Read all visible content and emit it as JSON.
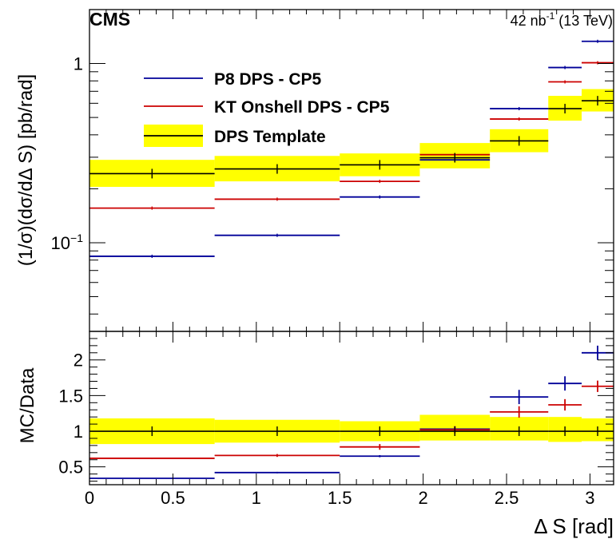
{
  "header": {
    "experiment": "CMS",
    "lumi_main": "42 nb",
    "lumi_exp": "-1",
    "lumi_energy": " (13 TeV)"
  },
  "chart_data": [
    {
      "type": "line",
      "panel": "main",
      "ylabel": "(1/σ)(dσ/dΔ S) [pb/rad]",
      "yscale": "log",
      "ylim": [
        0.032,
        2.0
      ],
      "xlim": [
        0,
        3.1416
      ],
      "y_ticks": [
        {
          "value": 1,
          "label": "1"
        },
        {
          "value": 0.1,
          "label": "10",
          "exp": "−1"
        }
      ],
      "bin_edges": [
        0,
        0.75,
        1.5,
        1.98,
        2.4,
        2.75,
        2.95,
        3.1416
      ],
      "legend_position": "top-left",
      "series": [
        {
          "name": "P8 DPS - CP5",
          "color": "#000099",
          "style": "step",
          "values": [
            0.084,
            0.11,
            0.18,
            0.29,
            0.56,
            0.95,
            1.33
          ]
        },
        {
          "name": "KT Onshell DPS - CP5",
          "color": "#cc0000",
          "style": "step",
          "values": [
            0.156,
            0.175,
            0.22,
            0.31,
            0.49,
            0.79,
            1.01
          ]
        },
        {
          "name": "DPS Template",
          "color": "#000000",
          "band_color": "#ffff00",
          "style": "band",
          "values": [
            0.243,
            0.258,
            0.272,
            0.298,
            0.37,
            0.56,
            0.62
          ],
          "band_lo": [
            0.205,
            0.22,
            0.235,
            0.26,
            0.32,
            0.48,
            0.54
          ],
          "band_hi": [
            0.29,
            0.305,
            0.315,
            0.36,
            0.43,
            0.66,
            0.72
          ]
        }
      ]
    },
    {
      "type": "line",
      "panel": "ratio",
      "xlabel": "Δ S [rad]",
      "ylabel": "MC/Data",
      "ylim": [
        0.25,
        2.4
      ],
      "xlim": [
        0,
        3.1416
      ],
      "y_ticks": [
        {
          "value": 0.5,
          "label": "0.5"
        },
        {
          "value": 1,
          "label": "1"
        },
        {
          "value": 1.5,
          "label": "1.5"
        },
        {
          "value": 2,
          "label": "2"
        }
      ],
      "x_ticks": [
        {
          "value": 0,
          "label": "0"
        },
        {
          "value": 0.5,
          "label": "0.5"
        },
        {
          "value": 1,
          "label": "1"
        },
        {
          "value": 1.5,
          "label": "1.5"
        },
        {
          "value": 2,
          "label": "2"
        },
        {
          "value": 2.5,
          "label": "2.5"
        },
        {
          "value": 3,
          "label": "3"
        }
      ],
      "bin_edges": [
        0,
        0.75,
        1.5,
        1.98,
        2.4,
        2.75,
        2.95,
        3.1416
      ],
      "series": [
        {
          "name": "P8 DPS - CP5",
          "color": "#000099",
          "values": [
            0.34,
            0.42,
            0.65,
            1.03,
            1.48,
            1.67,
            2.1
          ],
          "errors": [
            0.005,
            0.01,
            0.015,
            0.04,
            0.1,
            0.1,
            0.1
          ]
        },
        {
          "name": "KT Onshell DPS - CP5",
          "color": "#cc0000",
          "values": [
            0.62,
            0.66,
            0.78,
            1.02,
            1.27,
            1.37,
            1.63
          ],
          "errors": [
            0.01,
            0.02,
            0.04,
            0.05,
            0.08,
            0.08,
            0.08
          ]
        },
        {
          "name": "DPS Template",
          "color": "#000000",
          "band_color": "#ffff00",
          "values": [
            1,
            1,
            1,
            1,
            1,
            1,
            1
          ],
          "band_lo": [
            0.82,
            0.84,
            0.86,
            0.87,
            0.87,
            0.85,
            0.86
          ],
          "band_hi": [
            1.18,
            1.16,
            1.14,
            1.23,
            1.2,
            1.2,
            1.18
          ]
        }
      ]
    }
  ]
}
